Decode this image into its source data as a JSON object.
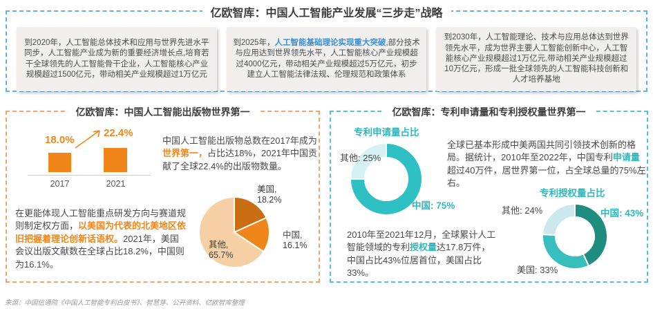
{
  "strategy": {
    "title": "亿欧智库：中国人工智能产业发展“三步走”战略",
    "milestones": [
      {
        "segments": [
          {
            "t": "到2020年，人工智能总体技术和应用与世界先进水平同步，人工智能产业成为新的重要经济增长点,培育若干全球领先的人工智能骨干企业，人工智能核心产业规模超过1500亿元，带动相关产业规模超过1万亿元"
          }
        ]
      },
      {
        "segments": [
          {
            "t": "到2025年，"
          },
          {
            "t": "人工智能基础理论实现重大突破",
            "c": "hl-blue"
          },
          {
            "t": ",部分技术与应用达到世界领先水平，人工智能核心产业规模超过4000亿元，带动相关产业规模超过5万亿元，初步建立人工智能法律法规、伦理规范和政策体系"
          }
        ]
      },
      {
        "segments": [
          {
            "t": "到2030年，人工智能理论、技术与应用总体达到世界领先水平，成为世界主要人工智能创新中心，人工智能核心产业规模超过1万亿元,带动相关产业规模超过10万亿元，形成一批全球领先的人工智能科技创新和人才培养基地"
          }
        ]
      }
    ]
  },
  "publications": {
    "title": "亿欧智库：中国人工智能出版物世界第一",
    "para1_segments": [
      {
        "t": "中国人工智能出版物总数在2017年成为"
      },
      {
        "t": "世界第一，",
        "c": "hl-orange"
      },
      {
        "t": "占比达18%，2021年中国贡献了全球22.4%的出版物数量。"
      }
    ],
    "para2_segments": [
      {
        "t": "在更能体现人工智能重点研发方向与赛道规则制定权方面，"
      },
      {
        "t": "以美国为代表的北美地区依旧把握着理论创新话语权。",
        "c": "hl-orange"
      },
      {
        "t": "2021年，美国会议出版文献数在全球占比18.2%，中国则为16.1%。"
      }
    ]
  },
  "patents": {
    "title": "亿欧智库：专利申请量和专利授权量世界第一",
    "para1_segments": [
      {
        "t": "全球已基本形成中美两国共同引领技术创新的格局。据统计，2010年至2022年，中国专利"
      },
      {
        "t": "申请量",
        "c": "hl-teal"
      },
      {
        "t": "超过40万件，居世界第一位，占全球总量的75%左右。"
      }
    ],
    "para2_segments": [
      {
        "t": "2010年至2021年12月，全球累计人工智能领域的专利"
      },
      {
        "t": "授权量",
        "c": "hl-teal"
      },
      {
        "t": "达17.8万件，中国占比43%位居首位，美国占比33%。"
      }
    ]
  },
  "source_note": "来源：中国信通院《中国人工智能专利白皮书》、智慧芽、公开资料、亿欧智库整理",
  "chart_data": [
    {
      "id": "publication_share_bar",
      "type": "bar",
      "categories": [
        "2017",
        "2021"
      ],
      "values": [
        18.0,
        22.4
      ],
      "value_labels": [
        "18.0%",
        "22.4%"
      ],
      "bar_color": "#F08619",
      "ylim": [
        0,
        22.4
      ]
    },
    {
      "id": "conference_publications_pie",
      "type": "pie",
      "labels": [
        "美国",
        "中国",
        "其他"
      ],
      "values": [
        18.2,
        16.1,
        65.7
      ],
      "colors": [
        "#C96E12",
        "#F08619",
        "#F6CFA5"
      ],
      "display_labels": [
        [
          "美国,",
          "18.2%"
        ],
        [
          "中国,",
          "16.1%"
        ],
        [
          "其他,",
          "65.7%"
        ]
      ],
      "start_angle": "top",
      "direction": "clockwise"
    },
    {
      "id": "patent_applications_donut",
      "type": "donut",
      "title": "专利申请量占比",
      "labels": [
        "中国",
        "其他"
      ],
      "values": [
        75,
        25
      ],
      "colors": [
        "#2EC0C2",
        "#D5F1F3"
      ],
      "display_labels": [
        "中国: 75%",
        "其他: 25%"
      ],
      "start_angle": "top",
      "direction": "clockwise"
    },
    {
      "id": "patent_grants_donut",
      "type": "donut",
      "title": "专利授权量占比",
      "labels": [
        "中国",
        "美国",
        "其他"
      ],
      "values": [
        43,
        33,
        24
      ],
      "colors": [
        "#1F8C80",
        "#39BEBE",
        "#CBE8EC"
      ],
      "display_labels": [
        "中国: 43%",
        "美国: 33%",
        "其他: 24%"
      ],
      "start_angle": "top",
      "direction": "clockwise"
    }
  ]
}
